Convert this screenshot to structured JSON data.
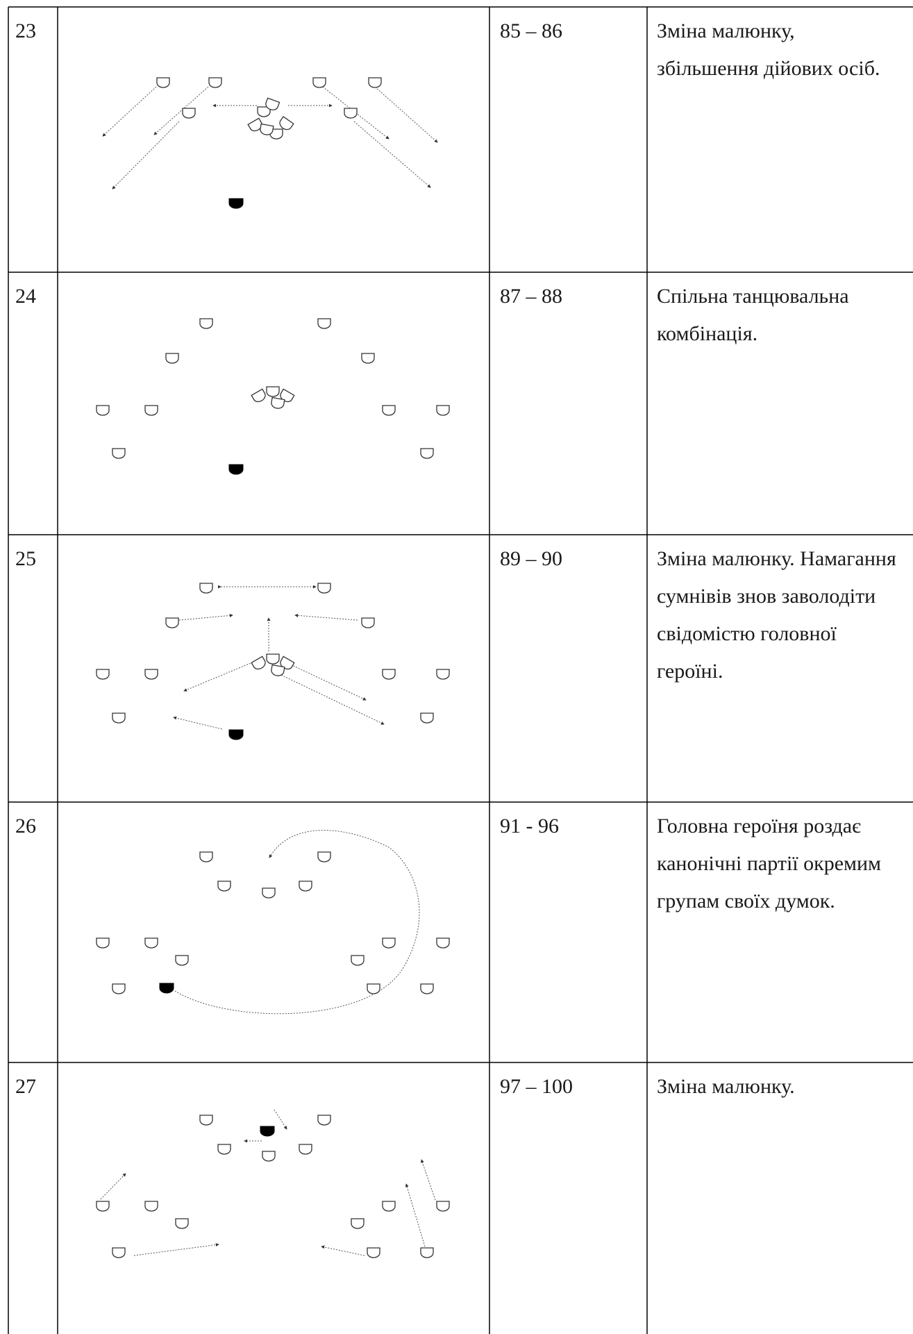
{
  "rows": [
    {
      "number": "23",
      "measures": "85 – 86",
      "description": "Зміна малюнку, збільшення дійових осіб."
    },
    {
      "number": "24",
      "measures": "87 – 88",
      "description": "Спільна танцювальна комбінація."
    },
    {
      "number": "25",
      "measures": "89 – 90",
      "description": "Зміна малюнку. Намагання сумнівів знов заволодіти свідомістю головної героїні."
    },
    {
      "number": "26",
      "measures": "91 - 96",
      "description": "Головна героїня роздає канонічні партії окремим групам своїх думок."
    },
    {
      "number": "27",
      "measures": "97 – 100",
      "description": "Зміна малюнку."
    }
  ]
}
